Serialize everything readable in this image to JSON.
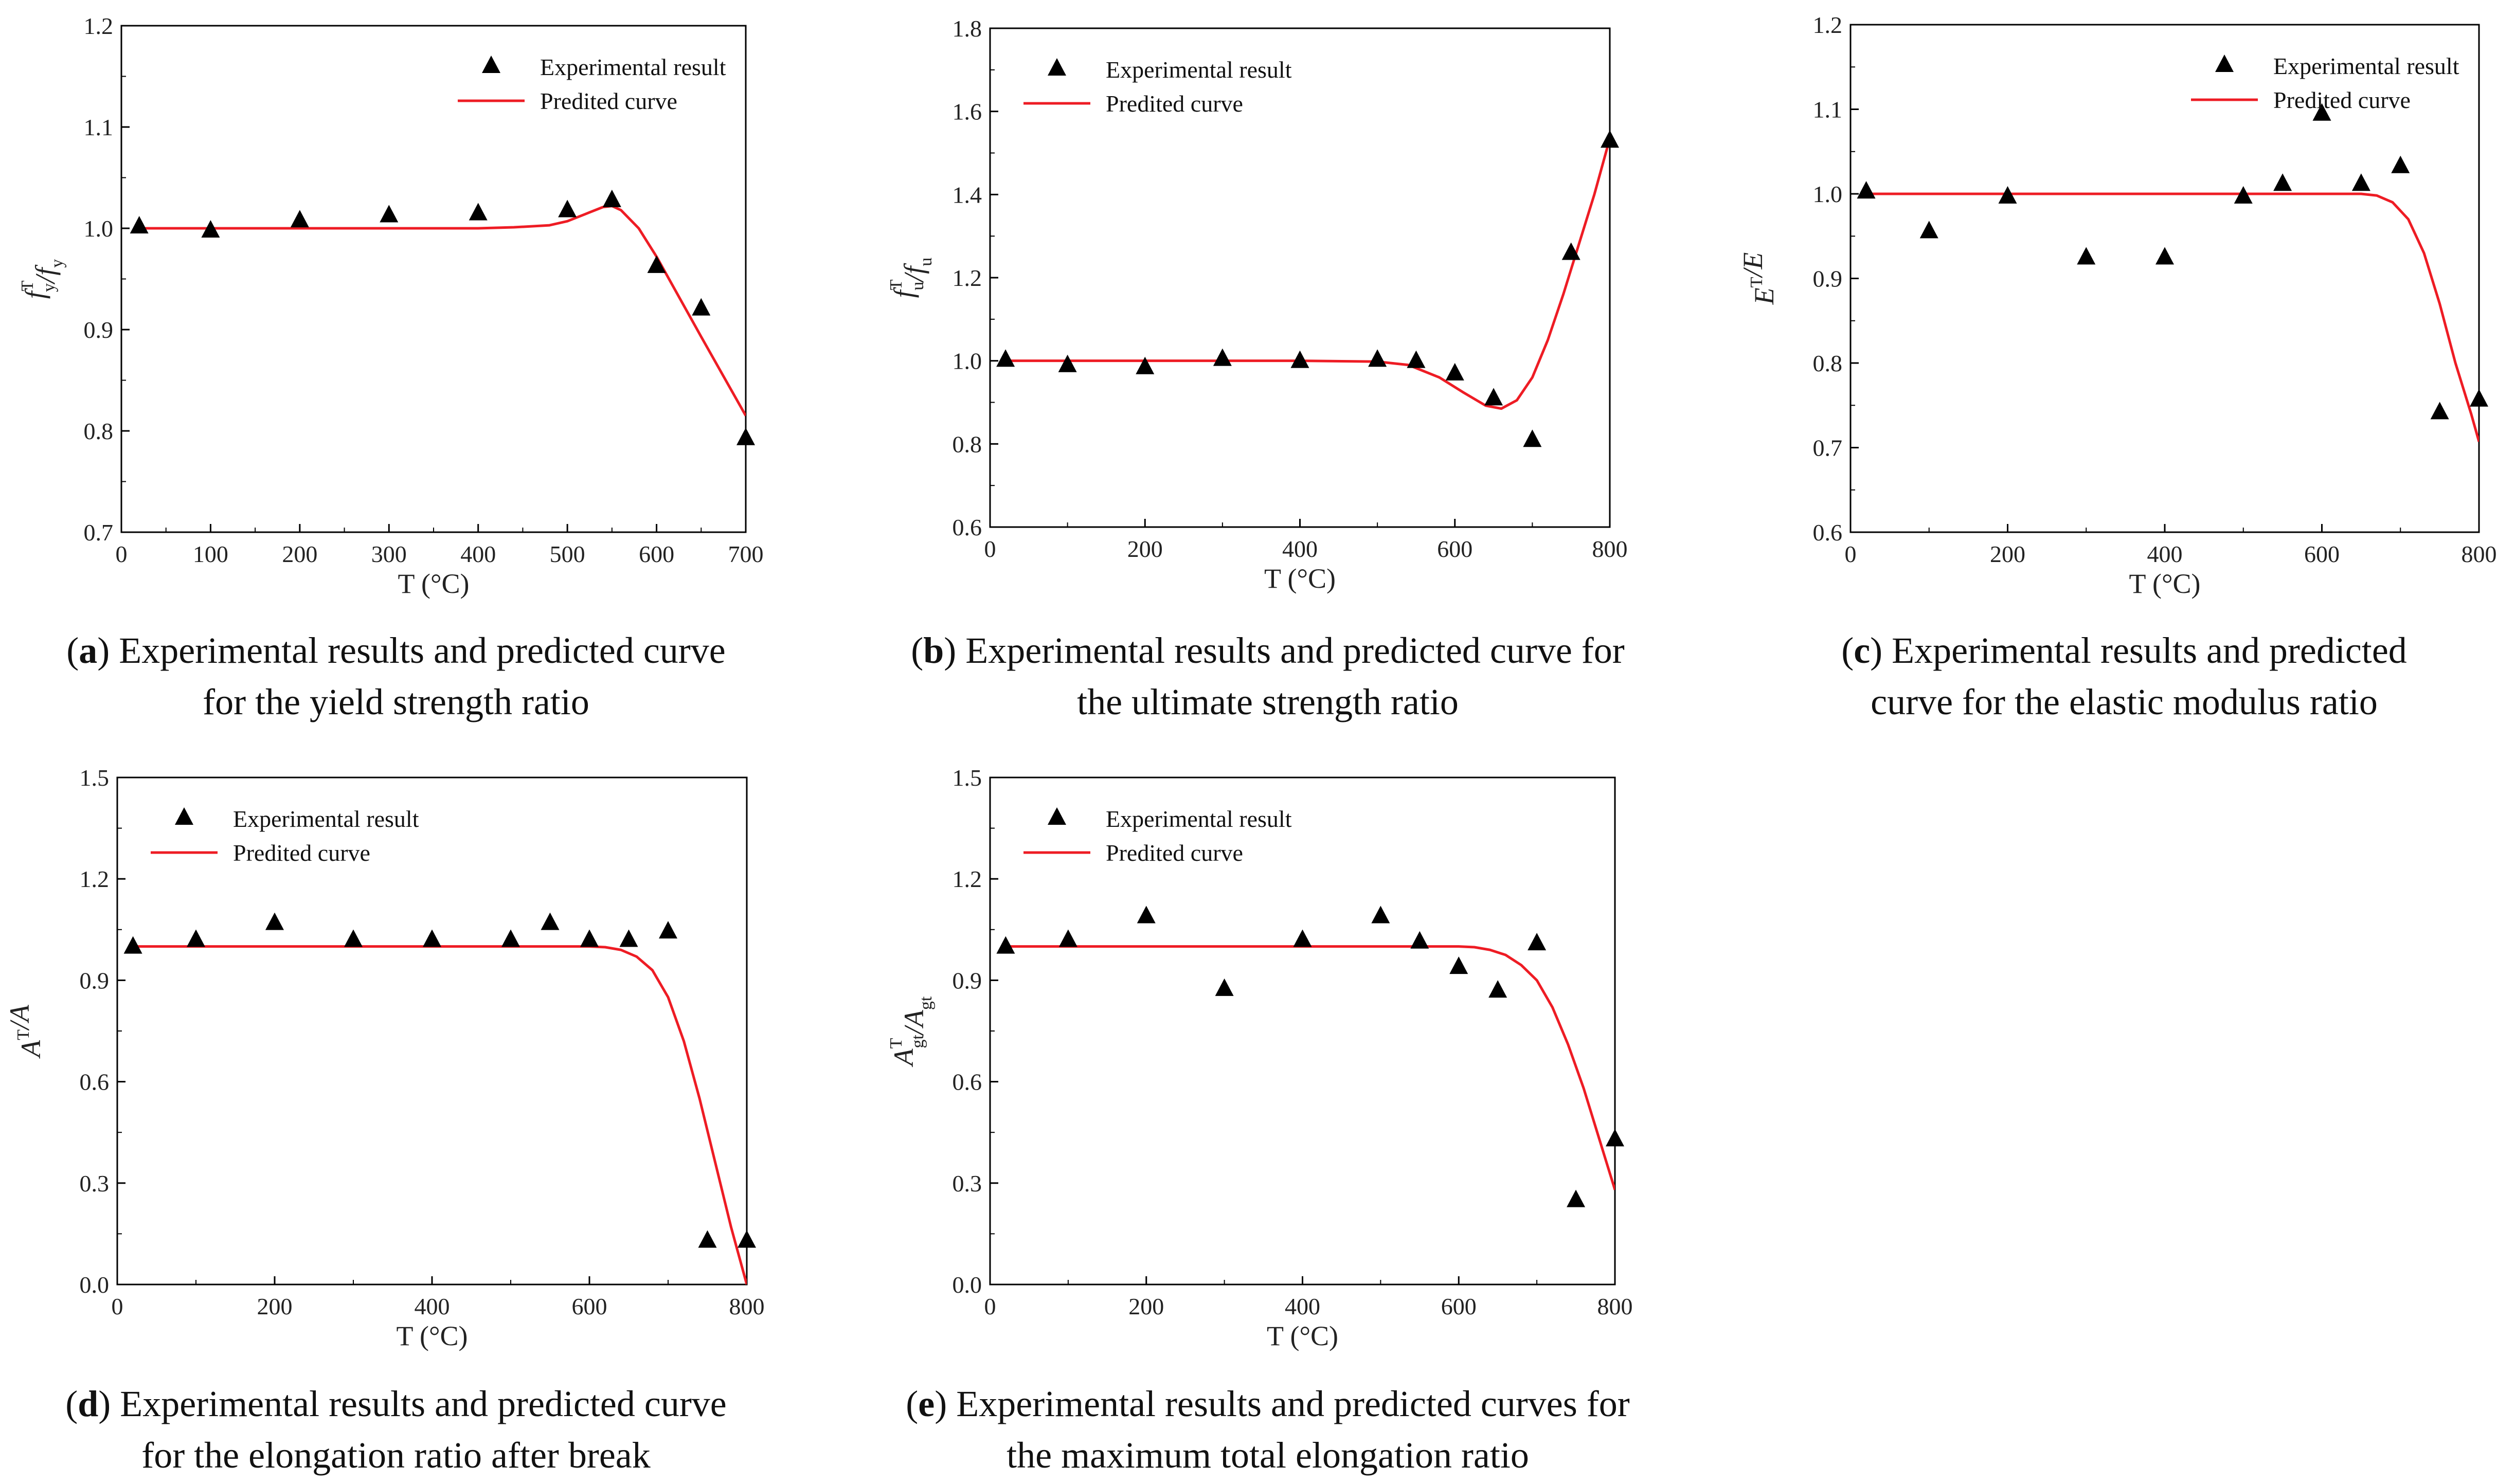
{
  "colors": {
    "curve": "#ee1c24",
    "marker": "#000000",
    "axis": "#000000"
  },
  "legend": {
    "marker_label": "Experimental result",
    "curve_label": "Predited curve"
  },
  "chart_data": [
    {
      "id": "a",
      "type": "scatter",
      "caption": {
        "letter": "a",
        "line1": "Experimental results and predicted curve",
        "line2": "for the yield strength ratio"
      },
      "xlabel": "T (°C)",
      "ylabel": "f_y^T/f_y",
      "xlim": [
        0,
        700
      ],
      "ylim": [
        0.7,
        1.2
      ],
      "xticks": [
        0,
        100,
        200,
        300,
        400,
        500,
        600,
        700
      ],
      "yticks": [
        0.7,
        0.8,
        0.9,
        1.0,
        1.1,
        1.2
      ],
      "ytick_labels": [
        "0.7",
        "0.8",
        "0.9",
        "1.0",
        "1.1",
        "1.2"
      ],
      "legend_position": "top-right",
      "series": [
        {
          "name": "Experimental result",
          "type": "scatter",
          "x": [
            20,
            100,
            200,
            300,
            400,
            500,
            550,
            600,
            650,
            700
          ],
          "y": [
            1.002,
            0.998,
            1.008,
            1.013,
            1.015,
            1.018,
            1.028,
            0.963,
            0.921,
            0.793
          ]
        },
        {
          "name": "Predited curve",
          "type": "line",
          "x": [
            20,
            100,
            200,
            300,
            400,
            440,
            480,
            500,
            520,
            540,
            550,
            560,
            580,
            600,
            650,
            700
          ],
          "y": [
            1.0,
            1.0,
            1.0,
            1.0,
            1.0,
            1.001,
            1.003,
            1.007,
            1.014,
            1.021,
            1.022,
            1.018,
            1.0,
            0.972,
            0.893,
            0.815
          ]
        }
      ]
    },
    {
      "id": "b",
      "type": "scatter",
      "caption": {
        "letter": "b",
        "line1": "Experimental results and predicted curve for",
        "line2": "the ultimate strength ratio"
      },
      "xlabel": "T (°C)",
      "ylabel": "f_u^T/f_u",
      "xlim": [
        0,
        800
      ],
      "ylim": [
        0.6,
        1.8
      ],
      "xticks": [
        0,
        200,
        400,
        600,
        800
      ],
      "yticks": [
        0.6,
        0.8,
        1.0,
        1.2,
        1.4,
        1.6,
        1.8
      ],
      "ytick_labels": [
        "0.6",
        "0.8",
        "1.0",
        "1.2",
        "1.4",
        "1.6",
        "1.8"
      ],
      "legend_position": "top-left",
      "series": [
        {
          "name": "Experimental result",
          "type": "scatter",
          "x": [
            20,
            100,
            200,
            300,
            400,
            500,
            550,
            600,
            650,
            700,
            750,
            800
          ],
          "y": [
            1.003,
            0.99,
            0.985,
            1.005,
            1.0,
            1.003,
            1.0,
            0.97,
            0.91,
            0.81,
            1.26,
            1.53
          ]
        },
        {
          "name": "Predited curve",
          "type": "line",
          "x": [
            20,
            100,
            200,
            300,
            400,
            500,
            540,
            580,
            610,
            640,
            660,
            680,
            700,
            720,
            740,
            760,
            780,
            800
          ],
          "y": [
            1.0,
            1.0,
            1.0,
            1.0,
            1.0,
            0.998,
            0.99,
            0.96,
            0.925,
            0.892,
            0.885,
            0.905,
            0.96,
            1.05,
            1.16,
            1.28,
            1.4,
            1.535
          ]
        }
      ]
    },
    {
      "id": "c",
      "type": "scatter",
      "caption": {
        "letter": "c",
        "line1": "Experimental results and predicted",
        "line2": "curve for the elastic modulus ratio"
      },
      "xlabel": "T (°C)",
      "ylabel": "E^T/E",
      "xlim": [
        0,
        800
      ],
      "ylim": [
        0.6,
        1.2
      ],
      "xticks": [
        0,
        200,
        400,
        600,
        800
      ],
      "yticks": [
        0.6,
        0.7,
        0.8,
        0.9,
        1.0,
        1.1,
        1.2
      ],
      "ytick_labels": [
        "0.6",
        "0.7",
        "0.8",
        "0.9",
        "1.0",
        "1.1",
        "1.2"
      ],
      "legend_position": "top-right",
      "series": [
        {
          "name": "Experimental result",
          "type": "scatter",
          "x": [
            20,
            100,
            200,
            300,
            400,
            500,
            550,
            600,
            650,
            700,
            750,
            800
          ],
          "y": [
            1.003,
            0.956,
            0.997,
            0.925,
            0.925,
            0.997,
            1.012,
            1.095,
            1.012,
            1.033,
            0.742,
            0.757
          ]
        },
        {
          "name": "Predited curve",
          "type": "line",
          "x": [
            20,
            100,
            200,
            300,
            400,
            500,
            600,
            650,
            670,
            690,
            710,
            730,
            750,
            770,
            790,
            800
          ],
          "y": [
            1.0,
            1.0,
            1.0,
            1.0,
            1.0,
            1.0,
            1.0,
            1.0,
            0.998,
            0.99,
            0.97,
            0.93,
            0.87,
            0.8,
            0.74,
            0.707
          ]
        }
      ]
    },
    {
      "id": "d",
      "type": "scatter",
      "caption": {
        "letter": "d",
        "line1": "Experimental results and predicted curve",
        "line2": "for the elongation ratio after break"
      },
      "xlabel": "T (°C)",
      "ylabel": "A^T/A",
      "xlim": [
        0,
        800
      ],
      "ylim": [
        0.0,
        1.5
      ],
      "xticks": [
        0,
        200,
        400,
        600,
        800
      ],
      "yticks": [
        0.0,
        0.3,
        0.6,
        0.9,
        1.2,
        1.5
      ],
      "ytick_labels": [
        "0.0",
        "0.3",
        "0.6",
        "0.9",
        "1.2",
        "1.5"
      ],
      "legend_position": "top-left",
      "series": [
        {
          "name": "Experimental result",
          "type": "scatter",
          "x": [
            20,
            100,
            200,
            300,
            400,
            500,
            550,
            600,
            650,
            700,
            750,
            800
          ],
          "y": [
            1.0,
            1.02,
            1.07,
            1.02,
            1.02,
            1.02,
            1.07,
            1.02,
            1.02,
            1.045,
            0.13,
            0.13
          ]
        },
        {
          "name": "Predited curve",
          "type": "line",
          "x": [
            20,
            100,
            200,
            300,
            400,
            500,
            600,
            620,
            640,
            660,
            680,
            700,
            720,
            740,
            760,
            780,
            800
          ],
          "y": [
            1.0,
            1.0,
            1.0,
            1.0,
            1.0,
            1.0,
            1.0,
            0.998,
            0.99,
            0.97,
            0.93,
            0.85,
            0.72,
            0.55,
            0.36,
            0.17,
            0.0
          ]
        }
      ]
    },
    {
      "id": "e",
      "type": "scatter",
      "caption": {
        "letter": "e",
        "line1": "Experimental results and predicted curves for",
        "line2": "the maximum total elongation ratio"
      },
      "xlabel": "T (°C)",
      "ylabel": "A_gt^T/A_gt",
      "xlim": [
        0,
        800
      ],
      "ylim": [
        0.0,
        1.5
      ],
      "xticks": [
        0,
        200,
        400,
        600,
        800
      ],
      "yticks": [
        0.0,
        0.3,
        0.6,
        0.9,
        1.2,
        1.5
      ],
      "ytick_labels": [
        "0.0",
        "0.3",
        "0.6",
        "0.9",
        "1.2",
        "1.5"
      ],
      "legend_position": "top-left",
      "series": [
        {
          "name": "Experimental result",
          "type": "scatter",
          "x": [
            20,
            100,
            200,
            300,
            400,
            500,
            550,
            600,
            650,
            700,
            750,
            800
          ],
          "y": [
            1.0,
            1.02,
            1.09,
            0.875,
            1.02,
            1.09,
            1.015,
            0.94,
            0.87,
            1.01,
            0.25,
            0.43
          ]
        },
        {
          "name": "Predited curve",
          "type": "line",
          "x": [
            20,
            100,
            200,
            300,
            400,
            500,
            600,
            620,
            640,
            660,
            680,
            700,
            720,
            740,
            760,
            780,
            800
          ],
          "y": [
            1.0,
            1.0,
            1.0,
            1.0,
            1.0,
            1.0,
            1.0,
            0.998,
            0.99,
            0.975,
            0.945,
            0.9,
            0.82,
            0.71,
            0.58,
            0.43,
            0.28
          ]
        }
      ]
    }
  ]
}
